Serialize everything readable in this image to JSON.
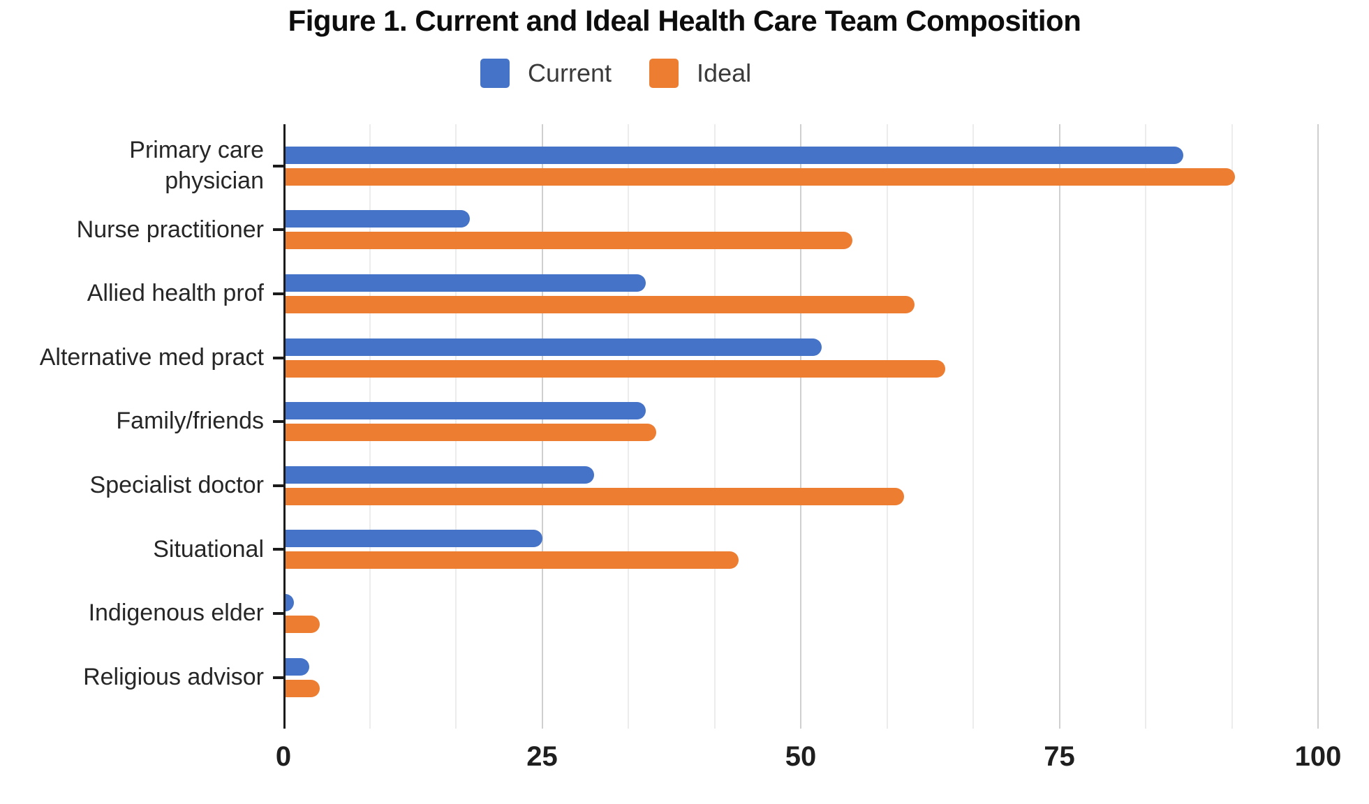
{
  "chart": {
    "title": "Figure 1. Current and Ideal Health Care Team Composition"
  },
  "chart_data": {
    "type": "bar",
    "orientation": "horizontal",
    "title": "Figure 1. Current and Ideal Health Care Team Composition",
    "categories": [
      "Primary care\nphysician",
      "Nurse practitioner",
      "Allied health prof",
      "Alternative med pract",
      "Family/friends",
      "Specialist doctor",
      "Situational",
      "Indigenous elder",
      "Religious advisor"
    ],
    "series": [
      {
        "name": "Current",
        "color": "#4573C7",
        "values": [
          87,
          18,
          35,
          52,
          35,
          30,
          25,
          1,
          2.5
        ]
      },
      {
        "name": "Ideal",
        "color": "#ED7D31",
        "values": [
          92,
          55,
          61,
          64,
          36,
          60,
          44,
          3.5,
          3.5
        ]
      }
    ],
    "x_ticks": [
      "0",
      "25",
      "50",
      "75",
      "100"
    ],
    "x_tick_values": [
      0,
      25,
      50,
      75,
      100
    ],
    "xlim": [
      0,
      103.5
    ],
    "grid": {
      "minor_interval": 8.333,
      "major_interval": 25,
      "legend_position": "top"
    },
    "axis_line_color": "#1b1b1b",
    "gridline_minor_color": "#ececec",
    "gridline_major_color": "#cfcfcf"
  }
}
